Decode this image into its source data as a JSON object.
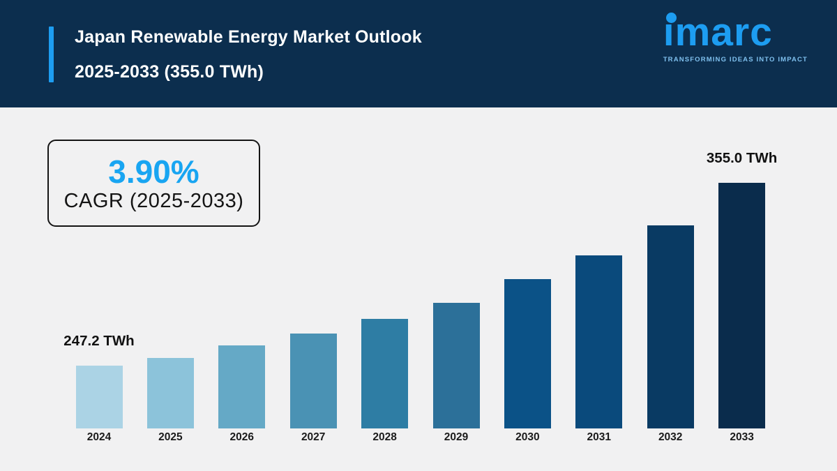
{
  "page": {
    "background_color": "#f1f1f2"
  },
  "header": {
    "title_line1": "Japan Renewable Energy Market Outlook",
    "title_line2": "2025-2033 (355.0 TWh)",
    "background_color": "#0c2e4e",
    "accent_color": "#1d9df1"
  },
  "logo": {
    "wordmark": "imarc",
    "tagline": "TRANSFORMING IDEAS INTO IMPACT",
    "brand_color": "#1d9df1",
    "tagline_color": "#7fc0ee"
  },
  "cagr_badge": {
    "value": "3.90%",
    "label": "CAGR (2025-2033)",
    "value_color": "#18a5f2",
    "border_color": "#141414"
  },
  "chart_data": {
    "type": "bar",
    "title": "Japan Renewable Energy Market Outlook 2025-2033 (355.0 TWh)",
    "unit": "TWh",
    "xlabel": "",
    "ylabel": "",
    "grid": false,
    "legend": false,
    "ylim": [
      210,
      360
    ],
    "categories": [
      "2024",
      "2025",
      "2026",
      "2027",
      "2028",
      "2029",
      "2030",
      "2031",
      "2032",
      "2033"
    ],
    "values": [
      247.2,
      251.8,
      259.2,
      266.2,
      274.8,
      284.3,
      298.0,
      312.0,
      329.8,
      355.0
    ],
    "labeled_points": [
      {
        "category": "2024",
        "value": 247.2,
        "text": "247.2 TWh"
      },
      {
        "category": "2033",
        "value": 355.0,
        "text": "355.0 TWh"
      }
    ],
    "bar_colors": [
      "#abd3e5",
      "#8cc3da",
      "#65a9c6",
      "#4a92b4",
      "#2e7da4",
      "#2c7099",
      "#0b5287",
      "#0a4a7c",
      "#093a63",
      "#0a2c4c"
    ],
    "axis_label_color": "#1b1b1b",
    "annotation_color": "#111111"
  }
}
